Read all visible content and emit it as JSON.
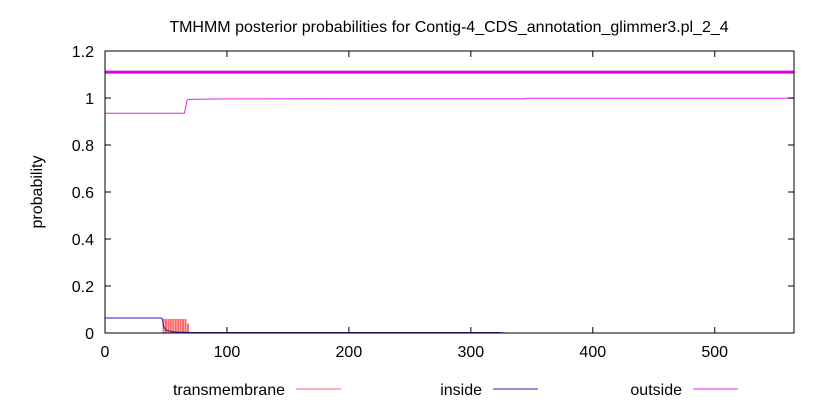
{
  "chart_data": {
    "type": "line",
    "title": "TMHMM posterior probabilities for Contig-4_CDS_annotation_glimmer3.pl_2_4",
    "xlabel": "",
    "ylabel": "probability",
    "xlim": [
      0,
      565
    ],
    "ylim": [
      0,
      1.2
    ],
    "x_ticks": [
      0,
      100,
      200,
      300,
      400,
      500
    ],
    "x_tick_labels": [
      "0",
      "100",
      "200",
      "300",
      "400",
      "500"
    ],
    "y_ticks": [
      0,
      0.2,
      0.4,
      0.6,
      0.8,
      1.0,
      1.2
    ],
    "y_tick_labels": [
      "0",
      "0.2",
      "0.4",
      "0.6",
      "0.8",
      "1",
      "1.2"
    ],
    "grid": false,
    "legend_position": "bottom",
    "header_bar": {
      "y": 1.11,
      "color": "#e000e0"
    },
    "series": [
      {
        "name": "transmembrane",
        "color": "#ff6666",
        "style": "bars",
        "x": [
          48,
          50,
          52,
          54,
          56,
          58,
          60,
          62,
          64,
          66,
          68
        ],
        "y": [
          0.06,
          0.06,
          0.06,
          0.06,
          0.06,
          0.06,
          0.06,
          0.06,
          0.06,
          0.06,
          0.04
        ]
      },
      {
        "name": "inside",
        "color": "#2222bb",
        "style": "line",
        "x": [
          0,
          46,
          47,
          48,
          50,
          55,
          60,
          65,
          70,
          100,
          200,
          300,
          322,
          330,
          400,
          500,
          565
        ],
        "y": [
          0.064,
          0.064,
          0.06,
          0.03,
          0.012,
          0.006,
          0.004,
          0.003,
          0.002,
          0.002,
          0.002,
          0.002,
          0.002,
          0.0,
          0.0,
          0.0,
          0.0
        ]
      },
      {
        "name": "outside",
        "color": "#ee22ee",
        "style": "line",
        "x": [
          0,
          65,
          66,
          67,
          68,
          100,
          200,
          300,
          345,
          346,
          400,
          500,
          565
        ],
        "y": [
          0.935,
          0.935,
          0.955,
          0.985,
          0.994,
          0.996,
          0.997,
          0.997,
          0.997,
          0.999,
          0.999,
          0.999,
          0.999
        ]
      }
    ]
  }
}
